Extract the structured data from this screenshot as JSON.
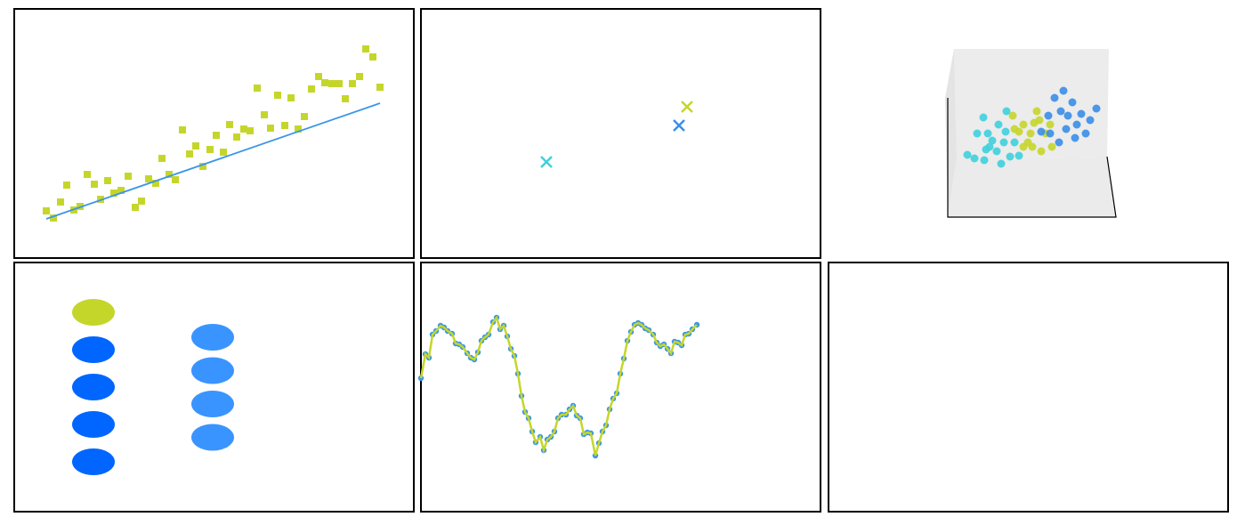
{
  "chart_data": [
    {
      "type": "scatter",
      "frame": true,
      "xlim": [
        0,
        449
      ],
      "ylim": [
        0,
        280
      ],
      "series": [
        {
          "marker": "square",
          "color": "#c5d62b",
          "x": [
            36,
            44,
            52,
            59,
            67,
            74,
            82,
            90,
            97,
            105,
            112,
            120,
            128,
            136,
            143,
            151,
            159,
            166,
            174,
            181,
            189,
            197,
            204,
            212,
            220,
            227,
            235,
            242,
            250,
            258,
            265,
            273,
            281,
            288,
            296,
            304,
            311,
            319,
            326,
            334,
            342,
            349,
            357,
            365,
            372,
            380,
            388,
            395,
            403,
            411
          ],
          "values": [
            53,
            45,
            63,
            82,
            54,
            58,
            94,
            83,
            66,
            87,
            73,
            76,
            92,
            57,
            64,
            89,
            84,
            112,
            94,
            88,
            144,
            117,
            126,
            103,
            122,
            138,
            119,
            150,
            136,
            145,
            143,
            191,
            161,
            146,
            183,
            149,
            180,
            145,
            159,
            190,
            204,
            197,
            196,
            196,
            179,
            196,
            204,
            235,
            226,
            192
          ]
        },
        {
          "marker": "line",
          "color": "#3a96e8",
          "x": [
            36,
            411
          ],
          "values": [
            44,
            174
          ]
        }
      ]
    },
    {
      "type": "scatter",
      "frame": true,
      "xlim": [
        0,
        449
      ],
      "ylim": [
        0,
        280
      ],
      "series": [
        {
          "marker": "x",
          "colors": [
            "#3fd0dd",
            "#3a8ee8",
            "#c5d62b"
          ],
          "x": [
            141,
            290,
            299
          ],
          "values": [
            108,
            149,
            170
          ]
        }
      ]
    },
    {
      "type": "scatter3d",
      "frame": false,
      "xlim": [
        0,
        449
      ],
      "ylim": [
        0,
        280
      ],
      "series": [
        {
          "marker": "circle",
          "color": "#3fd0dd",
          "x": [
            156,
            164,
            175,
            194,
            181,
            189,
            167,
            179,
            199,
            174,
            191,
            200,
            209,
            184,
            204,
            214,
            177,
            197
          ],
          "values": [
            116,
            112,
            110,
            106,
            125,
            120,
            140,
            140,
            142,
            158,
            150,
            165,
            130,
            132,
            114,
            115,
            122,
            130
          ]
        },
        {
          "marker": "circle",
          "color": "#c5d62b",
          "x": [
            207,
            219,
            227,
            234,
            239,
            229,
            244,
            251,
            214,
            224,
            237,
            249,
            209,
            231,
            219
          ],
          "values": [
            160,
            150,
            140,
            165,
            120,
            125,
            140,
            125,
            142,
            130,
            155,
            150,
            145,
            152,
            125
          ]
        },
        {
          "marker": "circle",
          "color": "#3a8ee8",
          "x": [
            254,
            264,
            269,
            279,
            289,
            301,
            259,
            247,
            274,
            284,
            267,
            294,
            261,
            249,
            277,
            239
          ],
          "values": [
            180,
            188,
            160,
            150,
            140,
            168,
            130,
            160,
            175,
            162,
            145,
            155,
            165,
            140,
            135,
            142
          ]
        }
      ]
    },
    {
      "type": "legend",
      "frame": true,
      "groups": [
        {
          "colors": [
            "#c5d62b",
            "#0066ff",
            "#0066ff",
            "#0066ff",
            "#0066ff"
          ]
        },
        {
          "colors": [
            "#3a94ff",
            "#3a94ff",
            "#3a94ff",
            "#3a94ff"
          ]
        }
      ]
    },
    {
      "type": "line",
      "frame": true,
      "xlim": [
        0,
        449
      ],
      "ylim": [
        0,
        280
      ],
      "series": [
        {
          "marker": "circle",
          "color": "#c5d62b",
          "marker_color": "#3a96e8",
          "x": [
            0,
            5,
            9,
            13,
            17,
            22,
            26,
            30,
            35,
            39,
            43,
            47,
            52,
            56,
            60,
            64,
            68,
            72,
            76,
            81,
            85,
            89,
            93,
            97,
            101,
            105,
            109,
            113,
            117,
            121,
            125,
            129,
            134,
            138,
            142,
            146,
            150,
            154,
            158,
            163,
            167,
            171,
            175,
            179,
            183,
            187,
            191,
            196,
            200,
            204,
            208,
            212,
            216,
            220,
            224,
            228,
            232,
            236,
            240,
            244,
            248,
            252,
            256,
            261,
            265,
            269,
            273,
            277,
            281,
            285,
            289,
            293,
            297,
            301,
            305,
            310
          ],
          "values": [
            150,
            177,
            173,
            199,
            203,
            209,
            207,
            203,
            200,
            189,
            188,
            185,
            178,
            173,
            171,
            179,
            192,
            196,
            199,
            213,
            218,
            205,
            209,
            197,
            183,
            175,
            155,
            130,
            112,
            105,
            90,
            78,
            84,
            69,
            81,
            84,
            90,
            105,
            109,
            109,
            115,
            119,
            108,
            105,
            87,
            89,
            88,
            63,
            77,
            90,
            97,
            115,
            127,
            133,
            155,
            172,
            192,
            202,
            210,
            212,
            210,
            206,
            204,
            199,
            190,
            186,
            188,
            183,
            178,
            191,
            190,
            187,
            199,
            200,
            205,
            210
          ]
        }
      ]
    },
    {
      "type": "empty",
      "frame": true
    }
  ]
}
